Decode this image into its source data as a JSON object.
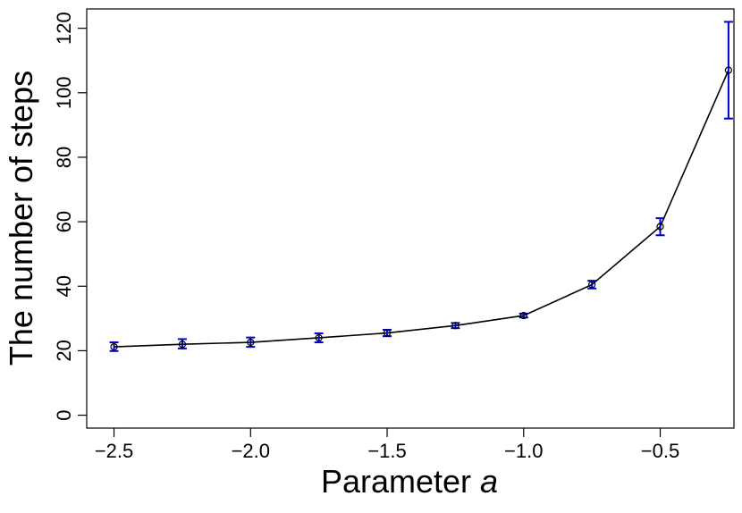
{
  "chart_data": {
    "type": "line",
    "title": "",
    "xlabel": "Parameter",
    "xlabel_var": "a",
    "ylabel": "The number of steps",
    "xlim": [
      -2.6,
      -0.23
    ],
    "ylim": [
      -4,
      126
    ],
    "x_ticks": [
      -2.5,
      -2.0,
      -1.5,
      -1.0,
      -0.5
    ],
    "x_tick_labels": [
      "−2.5",
      "−2.0",
      "−1.5",
      "−1.0",
      "−0.5"
    ],
    "y_ticks": [
      0,
      20,
      40,
      60,
      80,
      100,
      120
    ],
    "y_tick_labels": [
      "0",
      "20",
      "40",
      "60",
      "80",
      "100",
      "120"
    ],
    "grid": false,
    "legend": "none",
    "series": [
      {
        "x": [
          -2.5,
          -2.25,
          -2.0,
          -1.75,
          -1.5,
          -1.25,
          -1.0,
          -0.75,
          -0.5,
          -0.25
        ],
        "y": [
          21.2,
          22.0,
          22.6,
          24.0,
          25.5,
          27.8,
          30.9,
          40.5,
          58.5,
          107.0
        ],
        "err_low": [
          19.9,
          20.7,
          21.2,
          22.6,
          24.5,
          27.0,
          30.3,
          39.3,
          55.8,
          92.0
        ],
        "err_high": [
          22.6,
          23.6,
          24.1,
          25.4,
          26.5,
          28.6,
          31.5,
          41.7,
          61.1,
          122.0
        ]
      }
    ],
    "colors": {
      "line": "#000000",
      "marker": "#000000",
      "error_bar": "#0000cc"
    }
  }
}
